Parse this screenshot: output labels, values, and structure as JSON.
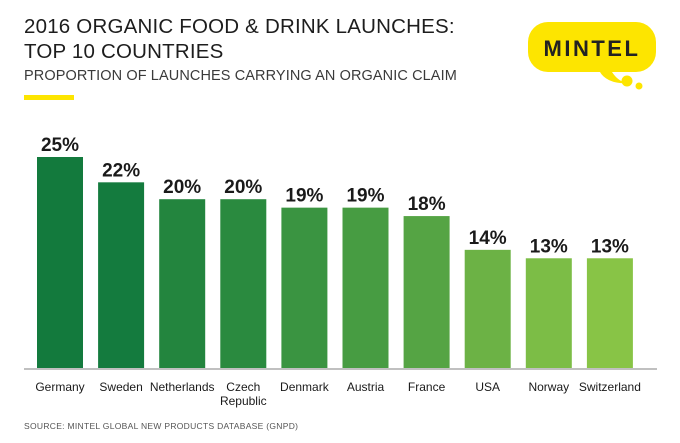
{
  "header": {
    "title_line1": "2016 ORGANIC FOOD & DRINK LAUNCHES:",
    "title_line2": "TOP 10 COUNTRIES",
    "subtitle": "PROPORTION OF LAUNCHES CARRYING AN ORGANIC CLAIM"
  },
  "logo": {
    "text": "MINTEL",
    "color": "#FDE500"
  },
  "footer": {
    "source": "SOURCE: MINTEL GLOBAL NEW PRODUCTS DATABASE (GNPD)"
  },
  "colors": {
    "accent": "#FDE500",
    "bars": [
      "#137a3d",
      "#147b3e",
      "#23853e",
      "#2a8a3f",
      "#3a9441",
      "#479c42",
      "#55a444",
      "#6cb245",
      "#7cbd46",
      "#88c446"
    ]
  },
  "chart_data": {
    "type": "bar",
    "categories": [
      "Germany",
      "Sweden",
      "Netherlands",
      "Czech Republic",
      "Denmark",
      "Austria",
      "France",
      "USA",
      "Norway",
      "Switzerland"
    ],
    "category_lines": [
      [
        "Germany"
      ],
      [
        "Sweden"
      ],
      [
        "Netherlands"
      ],
      [
        "Czech",
        "Republic"
      ],
      [
        "Denmark"
      ],
      [
        "Austria"
      ],
      [
        "France"
      ],
      [
        "USA"
      ],
      [
        "Norway"
      ],
      [
        "Switzerland"
      ]
    ],
    "values": [
      25,
      22,
      20,
      20,
      19,
      19,
      18,
      14,
      13,
      13
    ],
    "value_labels": [
      "25%",
      "22%",
      "20%",
      "20%",
      "19%",
      "19%",
      "18%",
      "14%",
      "13%",
      "13%"
    ],
    "unit": "%",
    "ylim": [
      0,
      25
    ],
    "grid": false,
    "legend": "none"
  }
}
